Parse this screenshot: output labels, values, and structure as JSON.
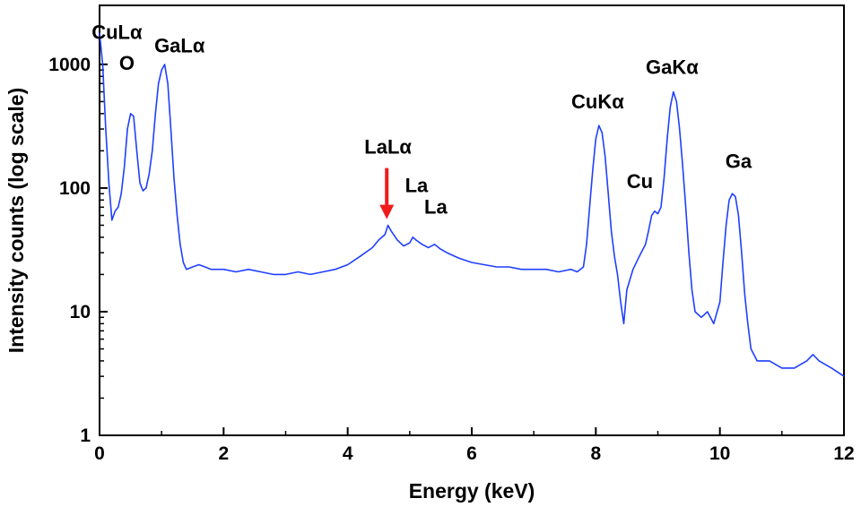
{
  "chart_data": {
    "type": "line",
    "title": "",
    "xlabel": "Energy (keV)",
    "ylabel": "Intensity counts (log scale)",
    "xlim": [
      0,
      12
    ],
    "ylim": [
      1,
      3000
    ],
    "yscale": "log",
    "grid": false,
    "legend": "none",
    "xticks": [
      0,
      2,
      4,
      6,
      8,
      10,
      12
    ],
    "xtick_labels": [
      "0",
      "2",
      "4",
      "6",
      "8",
      "10",
      "12"
    ],
    "yticks": [
      1,
      10,
      100,
      1000
    ],
    "ytick_labels": [
      "1",
      "10",
      "100",
      "1000"
    ],
    "line_color": "#1f3fff",
    "arrow_color": "#ee1c1c",
    "series": [
      {
        "name": "",
        "x": [
          0.0,
          0.05,
          0.1,
          0.15,
          0.2,
          0.25,
          0.3,
          0.35,
          0.4,
          0.45,
          0.5,
          0.55,
          0.6,
          0.65,
          0.7,
          0.75,
          0.8,
          0.85,
          0.9,
          0.95,
          1.0,
          1.05,
          1.1,
          1.15,
          1.2,
          1.25,
          1.3,
          1.35,
          1.4,
          1.5,
          1.6,
          1.7,
          1.8,
          2.0,
          2.2,
          2.4,
          2.6,
          2.8,
          3.0,
          3.2,
          3.4,
          3.6,
          3.8,
          4.0,
          4.2,
          4.4,
          4.5,
          4.6,
          4.65,
          4.7,
          4.8,
          4.9,
          5.0,
          5.05,
          5.1,
          5.2,
          5.3,
          5.4,
          5.5,
          5.6,
          5.8,
          6.0,
          6.2,
          6.4,
          6.6,
          6.8,
          7.0,
          7.2,
          7.4,
          7.6,
          7.7,
          7.8,
          7.85,
          7.9,
          7.95,
          8.0,
          8.05,
          8.1,
          8.15,
          8.2,
          8.25,
          8.3,
          8.35,
          8.4,
          8.45,
          8.5,
          8.6,
          8.7,
          8.8,
          8.85,
          8.9,
          8.95,
          9.0,
          9.05,
          9.1,
          9.15,
          9.2,
          9.25,
          9.3,
          9.35,
          9.4,
          9.45,
          9.5,
          9.55,
          9.6,
          9.7,
          9.8,
          9.9,
          10.0,
          10.05,
          10.1,
          10.15,
          10.2,
          10.25,
          10.3,
          10.35,
          10.4,
          10.45,
          10.5,
          10.6,
          10.8,
          11.0,
          11.2,
          11.4,
          11.5,
          11.6,
          11.8,
          12.0
        ],
        "y": [
          1800,
          1000,
          300,
          110,
          55,
          65,
          70,
          90,
          150,
          300,
          400,
          380,
          200,
          110,
          95,
          100,
          130,
          200,
          400,
          700,
          900,
          1000,
          700,
          300,
          120,
          60,
          35,
          25,
          22,
          23,
          24,
          23,
          22,
          22,
          21,
          22,
          21,
          20,
          20,
          21,
          20,
          21,
          22,
          24,
          28,
          33,
          38,
          42,
          50,
          45,
          38,
          34,
          36,
          40,
          38,
          35,
          33,
          35,
          32,
          30,
          27,
          25,
          24,
          23,
          23,
          22,
          22,
          22,
          21,
          22,
          21,
          23,
          35,
          70,
          140,
          250,
          320,
          280,
          180,
          90,
          45,
          28,
          20,
          12,
          8,
          15,
          22,
          28,
          35,
          45,
          60,
          65,
          62,
          70,
          120,
          250,
          450,
          600,
          500,
          300,
          150,
          70,
          30,
          15,
          10,
          9,
          10,
          8,
          12,
          25,
          50,
          80,
          90,
          85,
          60,
          30,
          14,
          8,
          5,
          4,
          4,
          3.5,
          3.5,
          4,
          4.5,
          4,
          3.5,
          3
        ]
      }
    ],
    "annotations": [
      {
        "text": "CuLα",
        "x": 0.28,
        "y": 1600
      },
      {
        "text": "O",
        "x": 0.44,
        "y": 900
      },
      {
        "text": "GaLα",
        "x": 1.29,
        "y": 1250
      },
      {
        "text": "LaLα",
        "x": 4.65,
        "y": 190
      },
      {
        "text": "La",
        "x": 5.11,
        "y": 93
      },
      {
        "text": "La",
        "x": 5.42,
        "y": 62
      },
      {
        "text": "CuKα",
        "x": 8.03,
        "y": 440
      },
      {
        "text": "Cu",
        "x": 8.71,
        "y": 100
      },
      {
        "text": "GaKα",
        "x": 9.23,
        "y": 840
      },
      {
        "text": "Ga",
        "x": 10.3,
        "y": 145
      }
    ],
    "arrow": {
      "x": 4.63,
      "y_from": 145,
      "y_to": 56
    }
  }
}
